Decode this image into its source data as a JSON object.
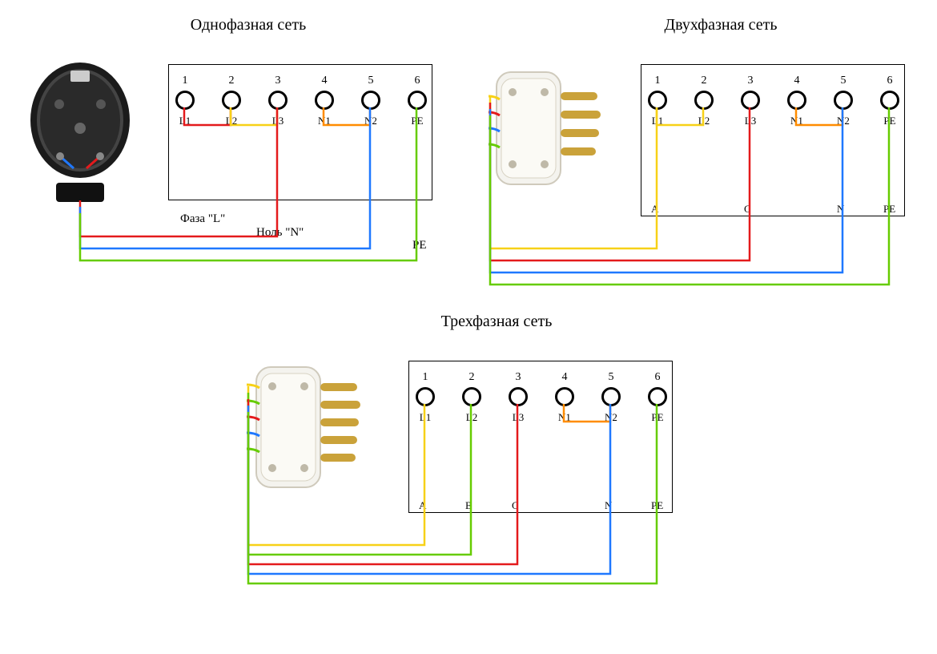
{
  "colors": {
    "red": "#e41a1c",
    "yellow": "#f7d117",
    "orange": "#ff8c00",
    "blue": "#1f78ff",
    "green": "#66cc00",
    "border": "#000000",
    "bg": "#ffffff"
  },
  "stroke_width": 2.5,
  "title_fontsize": 20,
  "label_fontsize": 13,
  "single": {
    "title": "Однофазная сеть",
    "terminals": [
      {
        "num": "1",
        "label": "L1"
      },
      {
        "num": "2",
        "label": "L2"
      },
      {
        "num": "3",
        "label": "L3"
      },
      {
        "num": "4",
        "label": "N1"
      },
      {
        "num": "5",
        "label": "N2"
      },
      {
        "num": "6",
        "label": "PE"
      }
    ],
    "side_labels": {
      "phase": "Фаза \"L\"",
      "neutral": "Ноль \"N\"",
      "pe": "PE"
    },
    "jumpers": [
      {
        "from": 0,
        "to": 1,
        "color": "red"
      },
      {
        "from": 1,
        "to": 2,
        "color": "yellow"
      },
      {
        "from": 3,
        "to": 4,
        "color": "orange"
      }
    ],
    "feeds": [
      {
        "term": 2,
        "color": "red",
        "drop": 45,
        "leftExit": true
      },
      {
        "term": 4,
        "color": "blue",
        "drop": 60,
        "leftExit": true
      },
      {
        "term": 5,
        "color": "green",
        "drop": 75,
        "leftExit": true
      }
    ]
  },
  "double": {
    "title": "Двухфазная сеть",
    "terminals": [
      {
        "num": "1",
        "label": "L1"
      },
      {
        "num": "2",
        "label": "L2"
      },
      {
        "num": "3",
        "label": "L3"
      },
      {
        "num": "4",
        "label": "N1"
      },
      {
        "num": "5",
        "label": "N2"
      },
      {
        "num": "6",
        "label": "PE"
      }
    ],
    "bottom_labels": [
      {
        "x": 0,
        "text": "A"
      },
      {
        "x": 2,
        "text": "C"
      },
      {
        "x": 4,
        "text": "N"
      },
      {
        "x": 5,
        "text": "PE"
      }
    ],
    "jumpers": [
      {
        "from": 0,
        "to": 1,
        "color": "yellow"
      },
      {
        "from": 3,
        "to": 4,
        "color": "orange"
      }
    ],
    "feeds": [
      {
        "term": 0,
        "color": "yellow",
        "drop": 40,
        "leftExit": true
      },
      {
        "term": 2,
        "color": "red",
        "drop": 55,
        "leftExit": true
      },
      {
        "term": 4,
        "color": "blue",
        "drop": 70,
        "leftExit": true
      },
      {
        "term": 5,
        "color": "green",
        "drop": 85,
        "leftExit": true
      }
    ]
  },
  "triple": {
    "title": "Трехфазная сеть",
    "terminals": [
      {
        "num": "1",
        "label": "L1"
      },
      {
        "num": "2",
        "label": "L2"
      },
      {
        "num": "3",
        "label": "L3"
      },
      {
        "num": "4",
        "label": "N1"
      },
      {
        "num": "5",
        "label": "N2"
      },
      {
        "num": "6",
        "label": "PE"
      }
    ],
    "bottom_labels": [
      {
        "x": 0,
        "text": "A"
      },
      {
        "x": 1,
        "text": "B"
      },
      {
        "x": 2,
        "text": "C"
      },
      {
        "x": 4,
        "text": "N"
      },
      {
        "x": 5,
        "text": "PE"
      }
    ],
    "jumpers": [
      {
        "from": 3,
        "to": 4,
        "color": "orange"
      }
    ],
    "feeds": [
      {
        "term": 0,
        "color": "yellow",
        "drop": 40,
        "leftExit": true
      },
      {
        "term": 1,
        "color": "green",
        "drop": 52,
        "leftExit": true
      },
      {
        "term": 2,
        "color": "red",
        "drop": 64,
        "leftExit": true
      },
      {
        "term": 4,
        "color": "blue",
        "drop": 76,
        "leftExit": true
      },
      {
        "term": 5,
        "color": "green",
        "drop": 88,
        "leftExit": true
      }
    ]
  }
}
